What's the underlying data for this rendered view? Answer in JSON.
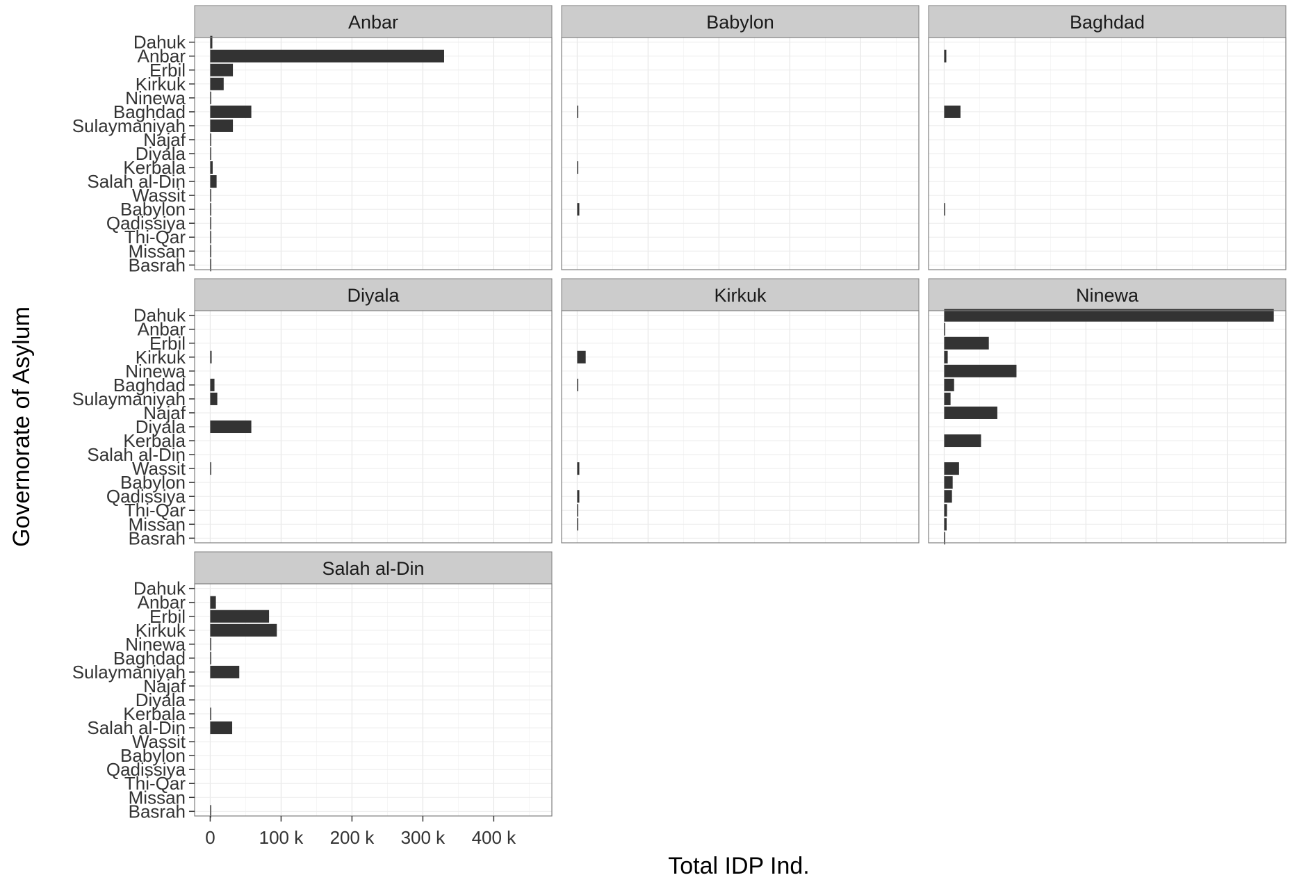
{
  "chart_data": {
    "type": "bar",
    "orientation": "horizontal",
    "title": "",
    "xlabel": "Total IDP Ind.",
    "ylabel": "Governorate of Asylum",
    "xlim": [
      -22000,
      482000
    ],
    "x_ticks": [
      0,
      100000,
      200000,
      300000,
      400000
    ],
    "x_tick_labels": [
      "0",
      "100 k",
      "200 k",
      "300 k",
      "400 k"
    ],
    "grid": true,
    "bar_color": "#333333",
    "strip_color": "#cccccc",
    "categories": [
      "Dahuk",
      "Anbar",
      "Erbil",
      "Kirkuk",
      "Ninewa",
      "Baghdad",
      "Sulaymaniyah",
      "Najaf",
      "Diyala",
      "Kerbala",
      "Salah al-Din",
      "Wassit",
      "Babylon",
      "Qadissiya",
      "Thi-Qar",
      "Missan",
      "Basrah"
    ],
    "panels": [
      {
        "name": "Anbar",
        "values": [
          3000,
          330000,
          32000,
          19000,
          1500,
          58000,
          32000,
          1000,
          500,
          3500,
          9000,
          500,
          1500,
          500,
          1000,
          500,
          1000
        ]
      },
      {
        "name": "Babylon",
        "values": [
          0,
          0,
          0,
          0,
          0,
          1200,
          0,
          0,
          0,
          1000,
          0,
          0,
          3000,
          0,
          0,
          0,
          0
        ]
      },
      {
        "name": "Baghdad",
        "values": [
          0,
          3000,
          0,
          0,
          0,
          23000,
          0,
          0,
          0,
          0,
          0,
          0,
          1200,
          0,
          0,
          0,
          0
        ]
      },
      {
        "name": "Diyala",
        "values": [
          0,
          0,
          0,
          2000,
          0,
          6000,
          10000,
          0,
          58000,
          0,
          0,
          1500,
          0,
          0,
          0,
          0,
          0
        ]
      },
      {
        "name": "Kirkuk",
        "values": [
          0,
          0,
          0,
          12000,
          0,
          1000,
          0,
          0,
          0,
          0,
          0,
          3000,
          0,
          3000,
          1000,
          500,
          0
        ]
      },
      {
        "name": "Ninewa",
        "values": [
          465000,
          1500,
          63000,
          5000,
          102000,
          14000,
          9000,
          75000,
          0,
          52000,
          0,
          21000,
          12000,
          11000,
          4000,
          3500,
          1500
        ]
      },
      {
        "name": "Salah al-Din",
        "values": [
          0,
          8000,
          83000,
          94000,
          1000,
          1500,
          41000,
          0,
          0,
          1000,
          31000,
          0,
          0,
          0,
          0,
          0,
          1000
        ]
      }
    ]
  }
}
